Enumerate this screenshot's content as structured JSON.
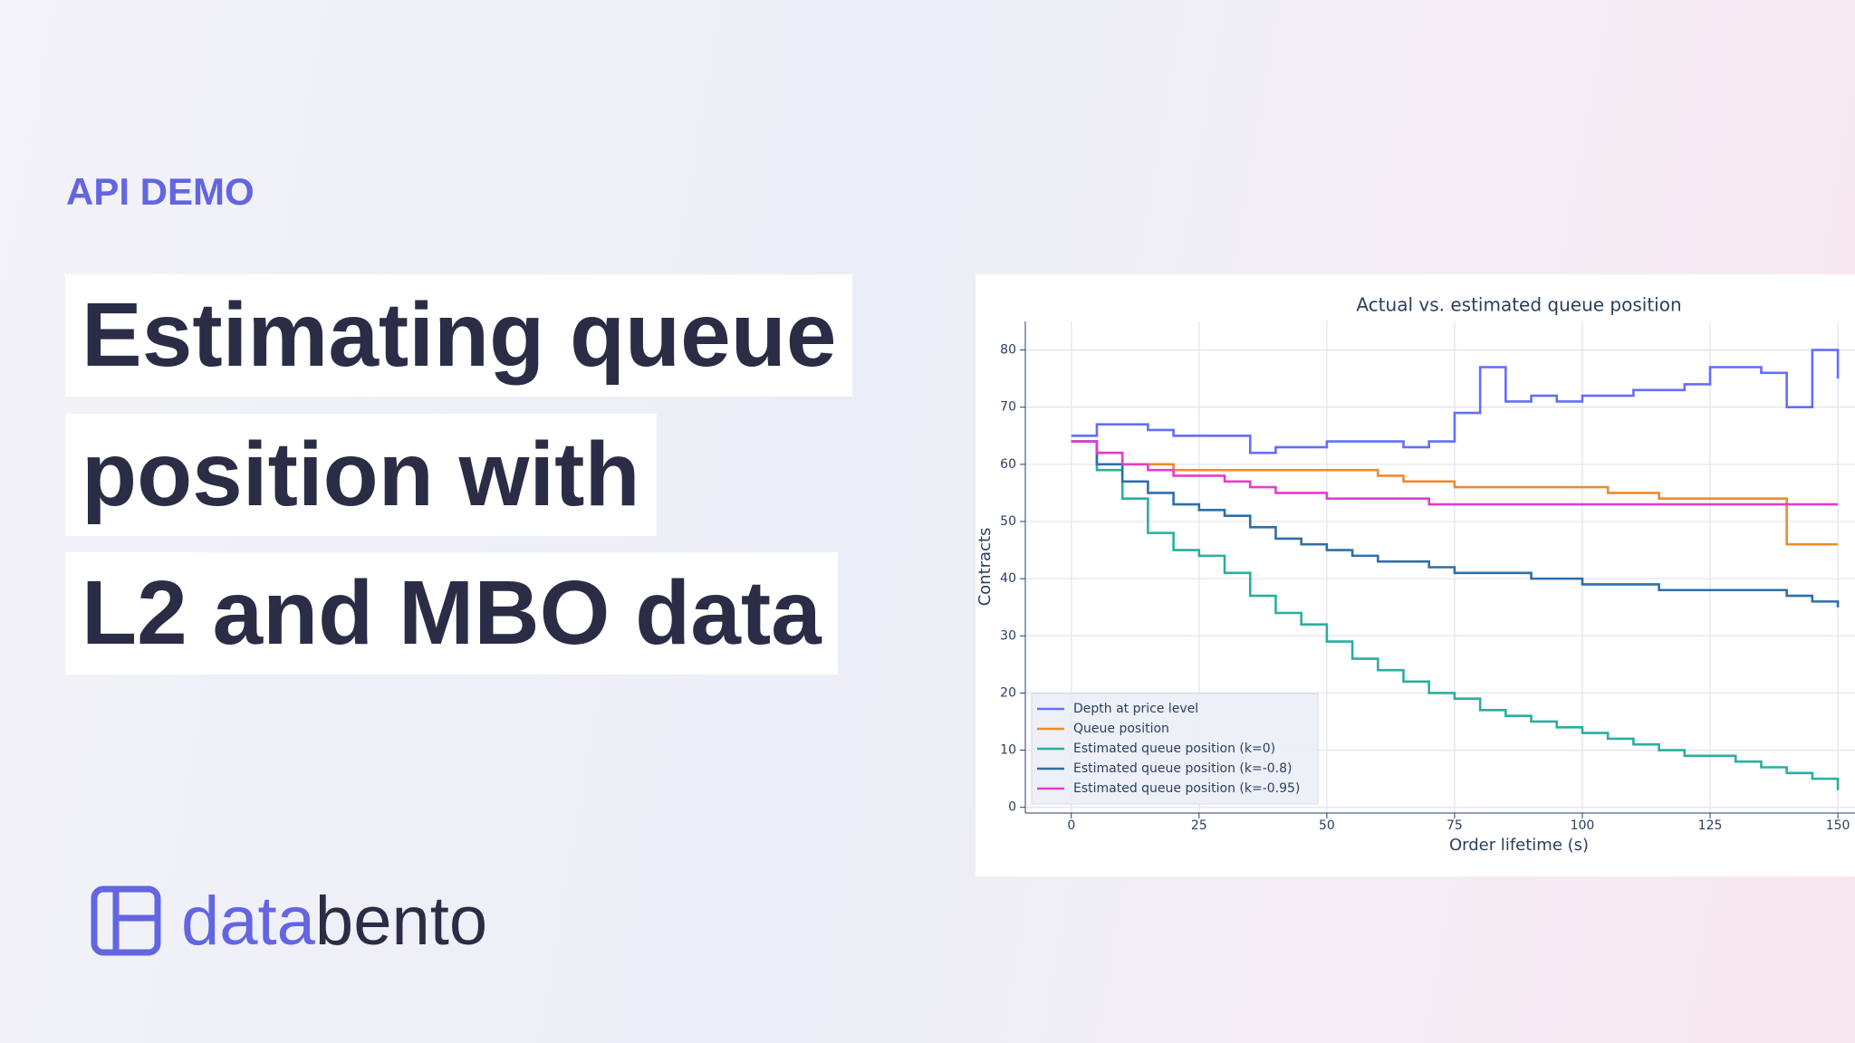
{
  "kicker": "API DEMO",
  "headline": [
    "Estimating queue",
    "position with",
    "L2 and MBO data"
  ],
  "logo": {
    "text_1": "data",
    "text_2": "bento"
  },
  "chart_data": {
    "type": "line",
    "line_shape": "hv",
    "title": "Actual vs. estimated queue position",
    "xlabel": "Order lifetime (s)",
    "ylabel": "Contracts",
    "x": [
      0,
      5,
      10,
      15,
      20,
      25,
      30,
      35,
      40,
      45,
      50,
      55,
      60,
      65,
      70,
      75,
      80,
      85,
      90,
      95,
      100,
      105,
      110,
      115,
      120,
      125,
      130,
      135,
      140,
      145,
      150
    ],
    "series": [
      {
        "name": "Depth at price level",
        "color": "#636efa",
        "values": [
          65,
          67,
          67,
          66,
          65,
          65,
          65,
          62,
          63,
          63,
          64,
          64,
          64,
          63,
          64,
          69,
          77,
          71,
          72,
          71,
          72,
          72,
          73,
          73,
          74,
          77,
          77,
          76,
          70,
          80,
          75
        ]
      },
      {
        "name": "Queue position",
        "color": "#ef8a2e",
        "values": [
          64,
          62,
          60,
          60,
          59,
          59,
          59,
          59,
          59,
          59,
          59,
          59,
          58,
          57,
          57,
          56,
          56,
          56,
          56,
          56,
          56,
          55,
          55,
          54,
          54,
          54,
          54,
          54,
          46,
          46,
          46
        ]
      },
      {
        "name": "Estimated queue position (k=0)",
        "color": "#2aae9e",
        "values": [
          64,
          59,
          54,
          48,
          45,
          44,
          41,
          37,
          34,
          32,
          29,
          26,
          24,
          22,
          20,
          19,
          17,
          16,
          15,
          14,
          13,
          12,
          11,
          10,
          9,
          9,
          8,
          7,
          6,
          5,
          3
        ]
      },
      {
        "name": "Estimated queue position (k=-0.8)",
        "color": "#2e6fa8",
        "values": [
          64,
          60,
          57,
          55,
          53,
          52,
          51,
          49,
          47,
          46,
          45,
          44,
          43,
          43,
          42,
          41,
          41,
          41,
          40,
          40,
          39,
          39,
          39,
          38,
          38,
          38,
          38,
          38,
          37,
          36,
          35
        ]
      },
      {
        "name": "Estimated queue position (k=-0.95)",
        "color": "#e63ccb",
        "values": [
          64,
          62,
          60,
          59,
          58,
          58,
          57,
          56,
          55,
          55,
          54,
          54,
          54,
          54,
          53,
          53,
          53,
          53,
          53,
          53,
          53,
          53,
          53,
          53,
          53,
          53,
          53,
          53,
          53,
          53,
          53
        ]
      }
    ],
    "xlim": [
      -9,
      154
    ],
    "ylim": [
      -1,
      85
    ],
    "xticks": [
      0,
      25,
      50,
      75,
      100,
      125,
      150
    ],
    "yticks": [
      0,
      10,
      20,
      30,
      40,
      50,
      60,
      70,
      80
    ],
    "grid": true,
    "legend": "lower-left"
  }
}
